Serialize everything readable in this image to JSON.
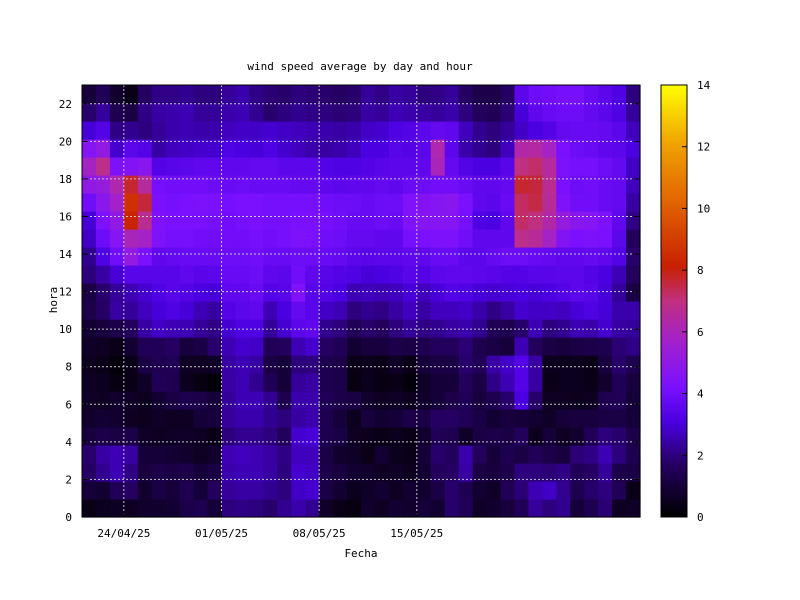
{
  "chart_data": {
    "type": "heatmap",
    "title": "wind speed average by day and hour",
    "xlabel": "Fecha",
    "ylabel": "hora",
    "x_dates": [
      "21/04/25",
      "22/04/25",
      "23/04/25",
      "24/04/25",
      "25/04/25",
      "26/04/25",
      "27/04/25",
      "28/04/25",
      "29/04/25",
      "30/04/25",
      "01/05/25",
      "02/05/25",
      "03/05/25",
      "04/05/25",
      "05/05/25",
      "06/05/25",
      "07/05/25",
      "08/05/25",
      "09/05/25",
      "10/05/25",
      "11/05/25",
      "12/05/25",
      "13/05/25",
      "14/05/25",
      "15/05/25",
      "16/05/25",
      "17/05/25",
      "18/05/25",
      "19/05/25",
      "20/05/25",
      "21/05/25",
      "22/05/25",
      "23/05/25",
      "24/05/25",
      "25/05/25",
      "26/05/25",
      "27/05/25",
      "28/05/25",
      "29/05/25",
      "30/05/25"
    ],
    "x_ticks": [
      "24/04/25",
      "01/05/25",
      "08/05/25",
      "15/05/25"
    ],
    "y_ticks": [
      0,
      2,
      4,
      6,
      8,
      10,
      12,
      14,
      16,
      18,
      20,
      22
    ],
    "ylim": [
      0,
      23
    ],
    "colorbar_ticks": [
      0,
      2,
      4,
      6,
      8,
      10,
      12,
      14
    ],
    "zlim": [
      0,
      14
    ],
    "grid": true,
    "palette_name": "black-blue-violet-red-yellow",
    "values": [
      [
        0.4,
        0.5,
        0.6,
        0.6,
        0.8,
        0.8,
        0.9,
        1.3,
        1.4,
        1.0,
        2.0,
        2.1,
        2.0,
        1.8,
        2.2,
        2.5,
        2.2,
        0.7,
        0.4,
        0.3,
        0.8,
        0.6,
        0.9,
        0.8,
        1.0,
        0.9,
        1.8,
        1.5,
        0.7,
        0.8,
        1.1,
        1.5,
        2.3,
        2.0,
        2.2,
        1.0,
        1.4,
        1.9,
        0.6,
        0.7
      ],
      [
        1.0,
        0.9,
        1.5,
        1.7,
        0.8,
        1.2,
        1.0,
        1.4,
        1.0,
        1.6,
        2.3,
        2.4,
        2.4,
        2.2,
        2.0,
        2.8,
        2.9,
        1.2,
        0.9,
        0.5,
        0.7,
        0.9,
        0.6,
        0.9,
        0.8,
        1.2,
        1.8,
        1.4,
        0.9,
        0.7,
        1.5,
        1.9,
        2.6,
        2.8,
        2.2,
        1.4,
        1.8,
        2.0,
        1.5,
        0.4
      ],
      [
        1.7,
        2.2,
        2.6,
        2.1,
        1.1,
        1.3,
        1.2,
        1.3,
        1.0,
        1.2,
        2.5,
        2.6,
        2.6,
        2.4,
        2.0,
        2.9,
        2.8,
        1.3,
        1.1,
        0.9,
        0.8,
        0.6,
        0.7,
        0.5,
        0.9,
        1.6,
        1.7,
        2.4,
        1.2,
        1.1,
        1.3,
        2.0,
        2.0,
        1.9,
        2.1,
        1.5,
        1.7,
        2.3,
        1.3,
        1.2
      ],
      [
        1.8,
        2.4,
        2.6,
        2.4,
        1.0,
        1.0,
        0.9,
        0.8,
        0.6,
        0.8,
        2.6,
        2.7,
        2.6,
        2.4,
        2.1,
        2.7,
        2.7,
        1.2,
        0.8,
        0.7,
        0.4,
        0.9,
        0.5,
        0.4,
        1.0,
        1.8,
        1.6,
        2.5,
        1.6,
        1.0,
        1.4,
        1.2,
        1.5,
        1.3,
        1.1,
        1.9,
        2.1,
        2.6,
        2.0,
        1.4
      ],
      [
        1.1,
        1.3,
        1.2,
        1.3,
        0.7,
        0.6,
        0.7,
        0.7,
        0.6,
        0.4,
        2.0,
        2.2,
        2.2,
        2.0,
        1.6,
        2.9,
        3.0,
        1.4,
        1.2,
        0.6,
        0.5,
        0.4,
        0.5,
        0.4,
        0.8,
        1.5,
        1.4,
        0.7,
        1.2,
        1.3,
        1.2,
        1.6,
        0.5,
        1.0,
        0.6,
        0.8,
        1.5,
        2.0,
        1.8,
        1.3
      ],
      [
        0.8,
        0.9,
        0.8,
        0.6,
        0.5,
        0.7,
        0.6,
        0.6,
        1.0,
        1.1,
        2.3,
        2.5,
        2.5,
        2.2,
        2.0,
        2.4,
        2.5,
        1.4,
        1.0,
        0.5,
        1.1,
        0.9,
        1.0,
        1.3,
        1.2,
        1.7,
        1.7,
        1.5,
        1.2,
        0.9,
        1.1,
        1.0,
        0.9,
        0.7,
        1.0,
        1.1,
        1.1,
        1.2,
        1.2,
        1.0
      ],
      [
        0.7,
        0.6,
        0.8,
        0.7,
        0.5,
        0.9,
        1.2,
        1.4,
        1.3,
        1.0,
        2.3,
        2.6,
        2.6,
        2.2,
        1.4,
        2.5,
        2.5,
        1.5,
        1.3,
        1.2,
        0.8,
        0.6,
        0.7,
        0.5,
        0.8,
        1.0,
        1.3,
        1.5,
        1.1,
        1.4,
        1.8,
        3.1,
        1.8,
        0.6,
        0.6,
        0.5,
        0.6,
        1.4,
        1.5,
        1.0
      ],
      [
        0.6,
        0.5,
        0.3,
        0.4,
        0.7,
        1.5,
        1.4,
        0.5,
        0.3,
        0.1,
        2.4,
        2.6,
        2.2,
        1.5,
        1.0,
        2.3,
        2.4,
        1.4,
        1.3,
        0.3,
        0.5,
        0.3,
        0.4,
        0.2,
        0.7,
        1.0,
        1.0,
        1.6,
        1.2,
        2.1,
        2.6,
        3.3,
        2.4,
        0.4,
        0.5,
        0.5,
        0.4,
        0.8,
        1.5,
        1.1
      ],
      [
        0.5,
        0.4,
        0.2,
        0.4,
        1.2,
        1.4,
        1.5,
        0.6,
        0.6,
        0.7,
        2.4,
        2.6,
        2.4,
        1.2,
        1.0,
        2.0,
        2.0,
        1.4,
        1.3,
        0.4,
        0.5,
        0.4,
        0.7,
        0.4,
        1.0,
        1.2,
        1.2,
        1.8,
        1.5,
        2.4,
        2.8,
        3.3,
        2.4,
        0.5,
        0.5,
        0.5,
        0.4,
        1.1,
        1.8,
        1.4
      ],
      [
        0.7,
        0.6,
        0.4,
        0.9,
        1.5,
        1.5,
        1.7,
        1.1,
        1.2,
        1.8,
        2.6,
        2.9,
        2.8,
        1.5,
        1.6,
        2.6,
        2.9,
        1.7,
        1.5,
        0.9,
        1.1,
        1.1,
        1.3,
        1.2,
        1.4,
        1.6,
        1.6,
        1.9,
        1.4,
        1.2,
        1.0,
        2.6,
        1.6,
        1.2,
        1.1,
        1.2,
        1.3,
        1.4,
        1.9,
        2.1
      ],
      [
        0.9,
        1.1,
        1.3,
        1.6,
        2.4,
        2.8,
        2.6,
        2.6,
        2.3,
        2.1,
        2.9,
        3.2,
        3.2,
        2.3,
        2.9,
        3.5,
        3.6,
        2.2,
        2.0,
        1.5,
        1.8,
        1.6,
        2.0,
        2.3,
        2.1,
        2.2,
        2.4,
        2.5,
        2.2,
        1.5,
        1.4,
        1.8,
        2.6,
        2.0,
        2.2,
        2.6,
        2.5,
        2.9,
        2.4,
        2.3
      ],
      [
        1.3,
        1.7,
        2.4,
        2.3,
        2.7,
        3.0,
        3.2,
        3.0,
        2.6,
        2.4,
        3.3,
        3.5,
        3.6,
        2.6,
        3.1,
        3.7,
        3.4,
        2.8,
        2.6,
        2.0,
        2.2,
        2.1,
        2.4,
        2.7,
        2.4,
        2.7,
        2.7,
        2.8,
        2.5,
        2.1,
        2.4,
        2.9,
        2.8,
        2.8,
        2.7,
        3.0,
        3.2,
        3.0,
        2.5,
        2.5
      ],
      [
        1.2,
        1.8,
        2.3,
        2.6,
        2.9,
        3.2,
        3.4,
        3.3,
        3.1,
        3.0,
        3.6,
        3.6,
        3.8,
        3.3,
        3.4,
        4.4,
        3.4,
        3.3,
        3.1,
        2.6,
        2.7,
        2.6,
        2.7,
        3.0,
        2.7,
        3.0,
        3.3,
        3.2,
        3.0,
        2.9,
        3.0,
        3.1,
        3.0,
        3.1,
        3.3,
        3.5,
        3.4,
        3.0,
        2.3,
        1.2
      ],
      [
        2.0,
        2.4,
        3.0,
        3.4,
        3.4,
        3.4,
        3.4,
        3.6,
        3.4,
        3.5,
        3.8,
        3.8,
        3.9,
        3.6,
        3.5,
        4.0,
        3.6,
        3.4,
        3.3,
        3.2,
        3.0,
        3.1,
        3.2,
        3.4,
        3.3,
        3.5,
        3.6,
        3.6,
        3.5,
        3.4,
        3.3,
        3.3,
        3.4,
        3.4,
        3.5,
        3.5,
        3.3,
        3.1,
        2.6,
        1.6
      ],
      [
        2.2,
        3.2,
        4.0,
        5.1,
        4.2,
        3.6,
        3.7,
        3.8,
        3.8,
        3.8,
        3.9,
        3.9,
        4.0,
        3.8,
        3.8,
        3.9,
        3.9,
        3.8,
        3.7,
        3.5,
        3.4,
        3.5,
        3.5,
        3.6,
        3.6,
        3.8,
        3.8,
        3.5,
        3.5,
        3.7,
        3.9,
        3.9,
        3.8,
        3.7,
        3.6,
        3.6,
        3.7,
        3.6,
        3.3,
        1.8
      ],
      [
        2.8,
        3.9,
        4.6,
        6.0,
        5.8,
        4.4,
        4.1,
        4.1,
        4.0,
        4.0,
        4.0,
        4.0,
        4.1,
        4.0,
        4.1,
        4.3,
        4.2,
        4.0,
        3.9,
        3.7,
        3.7,
        3.6,
        3.6,
        4.1,
        4.2,
        4.3,
        4.3,
        4.0,
        3.6,
        3.6,
        3.6,
        6.8,
        6.6,
        5.8,
        4.5,
        4.2,
        4.3,
        4.2,
        3.5,
        1.6
      ],
      [
        3.0,
        4.3,
        5.0,
        8.2,
        6.7,
        4.4,
        4.2,
        4.2,
        4.2,
        4.1,
        4.0,
        4.1,
        4.2,
        4.1,
        4.1,
        4.2,
        4.2,
        4.1,
        4.0,
        3.8,
        3.8,
        3.9,
        3.8,
        4.4,
        4.6,
        4.6,
        4.6,
        4.1,
        3.2,
        3.1,
        3.6,
        7.2,
        7.0,
        6.3,
        5.2,
        4.7,
        4.6,
        4.3,
        3.6,
        2.1
      ],
      [
        4.0,
        4.8,
        5.7,
        8.6,
        7.6,
        4.2,
        4.1,
        4.2,
        4.3,
        4.2,
        4.1,
        4.2,
        4.2,
        4.1,
        4.1,
        4.1,
        4.1,
        4.0,
        3.9,
        3.9,
        3.8,
        3.9,
        3.9,
        4.4,
        4.5,
        4.6,
        4.7,
        4.2,
        3.6,
        3.5,
        3.8,
        7.3,
        7.5,
        6.6,
        4.4,
        4.0,
        4.0,
        3.8,
        3.7,
        2.4
      ],
      [
        5.0,
        5.2,
        6.2,
        7.7,
        6.5,
        4.1,
        4.0,
        4.0,
        4.0,
        3.9,
        3.8,
        3.9,
        3.8,
        3.8,
        3.8,
        3.7,
        3.7,
        3.6,
        3.5,
        3.6,
        3.6,
        3.7,
        3.6,
        3.8,
        3.9,
        4.0,
        4.0,
        3.8,
        3.6,
        3.6,
        3.7,
        7.7,
        7.6,
        6.7,
        4.2,
        3.9,
        4.0,
        3.8,
        3.7,
        2.7
      ],
      [
        5.8,
        6.8,
        4.3,
        4.5,
        4.7,
        3.3,
        3.4,
        3.5,
        3.6,
        3.6,
        3.6,
        3.6,
        3.7,
        3.7,
        3.5,
        3.5,
        3.5,
        3.3,
        3.2,
        3.2,
        3.3,
        3.4,
        3.5,
        3.5,
        3.6,
        6.0,
        3.7,
        3.3,
        3.1,
        3.1,
        3.4,
        7.0,
        7.2,
        6.5,
        4.3,
        4.1,
        4.1,
        3.9,
        3.7,
        2.8
      ],
      [
        4.6,
        5.1,
        2.9,
        3.5,
        3.3,
        2.4,
        2.7,
        2.8,
        2.9,
        2.9,
        3.2,
        3.1,
        3.0,
        3.2,
        2.9,
        2.7,
        2.5,
        2.4,
        2.5,
        2.7,
        3.1,
        3.1,
        3.4,
        3.3,
        3.5,
        6.2,
        3.5,
        2.5,
        2.2,
        2.0,
        2.7,
        6.3,
        6.4,
        5.8,
        4.2,
        3.9,
        3.8,
        3.6,
        3.5,
        3.1
      ],
      [
        3.0,
        3.3,
        2.1,
        2.2,
        2.0,
        2.3,
        2.5,
        2.6,
        2.5,
        2.5,
        2.7,
        2.8,
        2.8,
        2.9,
        2.8,
        2.7,
        2.6,
        2.5,
        2.4,
        2.5,
        2.8,
        2.9,
        3.2,
        3.3,
        3.5,
        3.7,
        3.6,
        2.7,
        2.2,
        2.0,
        2.3,
        2.8,
        3.1,
        3.3,
        3.7,
        3.8,
        3.8,
        3.7,
        3.5,
        2.7
      ],
      [
        1.8,
        2.3,
        1.4,
        1.2,
        2.1,
        2.4,
        2.5,
        2.6,
        2.3,
        2.3,
        2.5,
        2.6,
        2.2,
        1.8,
        2.0,
        2.2,
        2.1,
        2.0,
        1.9,
        2.0,
        2.4,
        2.3,
        2.6,
        2.5,
        2.4,
        2.3,
        2.5,
        2.0,
        1.6,
        1.5,
        1.9,
        3.0,
        3.6,
        3.8,
        3.9,
        3.9,
        3.7,
        3.5,
        3.2,
        2.3
      ],
      [
        1.0,
        1.5,
        0.8,
        0.4,
        1.7,
        2.1,
        2.1,
        2.2,
        2.0,
        2.0,
        2.3,
        2.5,
        2.1,
        1.9,
        1.8,
        2.0,
        1.9,
        1.8,
        1.7,
        1.8,
        2.3,
        2.1,
        2.4,
        2.3,
        2.0,
        2.1,
        2.3,
        1.7,
        1.3,
        1.3,
        1.7,
        3.5,
        3.9,
        4.0,
        4.1,
        4.1,
        3.8,
        3.5,
        3.2,
        2.0
      ]
    ]
  },
  "labels": {
    "title": "wind speed average by day and hour",
    "xlabel": "Fecha",
    "ylabel": "hora"
  }
}
